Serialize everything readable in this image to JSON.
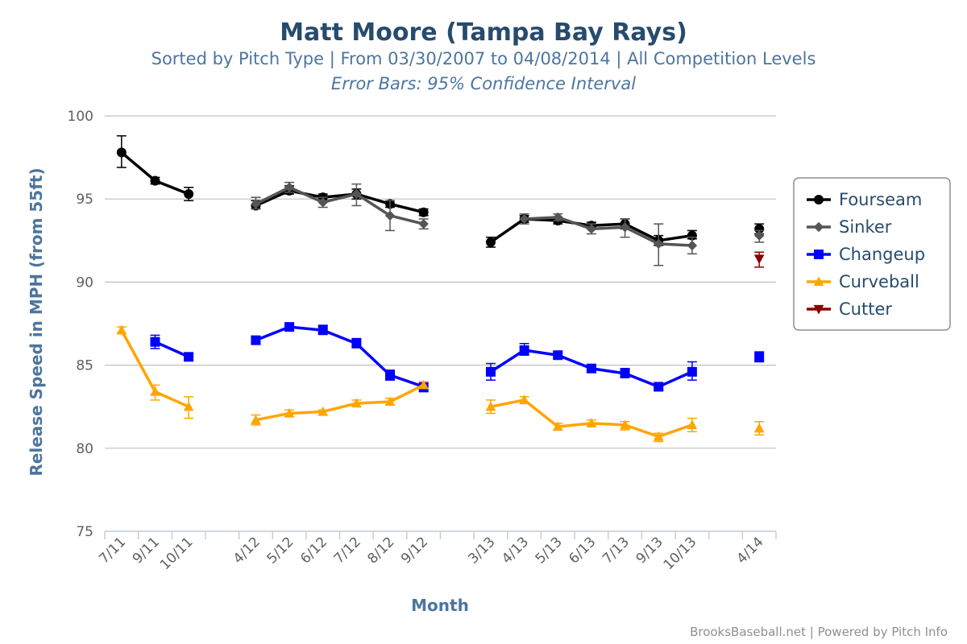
{
  "title": "Matt Moore (Tampa Bay Rays)",
  "subtitle": "Sorted by Pitch Type | From 03/30/2007 to 04/08/2014 | All Competition Levels",
  "subtitle2": "Error Bars: 95% Confidence Interval",
  "credits": "BrooksBaseball.net | Powered by Pitch Info",
  "chart_data": {
    "type": "line",
    "xlabel": "Month",
    "ylabel": "Release Speed in MPH (from 55ft)",
    "ylim": [
      75,
      100
    ],
    "yticks": [
      75,
      80,
      85,
      90,
      95,
      100
    ],
    "grid": true,
    "legend_position": "right",
    "xticks": [
      {
        "label": "7/11",
        "x": 0.5
      },
      {
        "label": "9/11",
        "x": 1.5
      },
      {
        "label": "10/11",
        "x": 2.5
      },
      {
        "label": "4/12",
        "x": 4.5
      },
      {
        "label": "5/12",
        "x": 5.5
      },
      {
        "label": "6/12",
        "x": 6.5
      },
      {
        "label": "7/12",
        "x": 7.5
      },
      {
        "label": "8/12",
        "x": 8.5
      },
      {
        "label": "9/12",
        "x": 9.5
      },
      {
        "label": "3/13",
        "x": 11.5
      },
      {
        "label": "4/13",
        "x": 12.5
      },
      {
        "label": "5/13",
        "x": 13.5
      },
      {
        "label": "6/13",
        "x": 14.5
      },
      {
        "label": "7/13",
        "x": 15.5
      },
      {
        "label": "9/13",
        "x": 16.5
      },
      {
        "label": "10/13",
        "x": 17.5
      },
      {
        "label": "4/14",
        "x": 19.5
      }
    ],
    "series": [
      {
        "name": "Fourseam",
        "color": "#000000",
        "marker": "circle",
        "points": [
          {
            "x": 0.5,
            "y": 97.8,
            "lo": 96.9,
            "hi": 98.8
          },
          {
            "x": 1.5,
            "y": 96.1,
            "lo": 95.9,
            "hi": 96.3
          },
          {
            "x": 2.5,
            "y": 95.3,
            "lo": 94.9,
            "hi": 95.7
          },
          null,
          {
            "x": 4.5,
            "y": 94.6,
            "lo": 94.4,
            "hi": 94.9
          },
          {
            "x": 5.5,
            "y": 95.5,
            "lo": 95.3,
            "hi": 95.8
          },
          {
            "x": 6.5,
            "y": 95.1,
            "lo": 94.9,
            "hi": 95.3
          },
          {
            "x": 7.5,
            "y": 95.3,
            "lo": 95.0,
            "hi": 95.6
          },
          {
            "x": 8.5,
            "y": 94.7,
            "lo": 94.5,
            "hi": 94.9
          },
          {
            "x": 9.5,
            "y": 94.2,
            "lo": 94.0,
            "hi": 94.4
          },
          null,
          {
            "x": 11.5,
            "y": 92.4,
            "lo": 92.1,
            "hi": 92.7
          },
          {
            "x": 12.5,
            "y": 93.8,
            "lo": 93.6,
            "hi": 94.0
          },
          {
            "x": 13.5,
            "y": 93.7,
            "lo": 93.5,
            "hi": 93.9
          },
          {
            "x": 14.5,
            "y": 93.4,
            "lo": 93.2,
            "hi": 93.6
          },
          {
            "x": 15.5,
            "y": 93.5,
            "lo": 93.2,
            "hi": 93.8
          },
          {
            "x": 16.5,
            "y": 92.5,
            "lo": 92.2,
            "hi": 92.8
          },
          {
            "x": 17.5,
            "y": 92.8,
            "lo": 92.6,
            "hi": 93.1
          },
          null,
          {
            "x": 19.5,
            "y": 93.2,
            "lo": 92.9,
            "hi": 93.5
          }
        ]
      },
      {
        "name": "Sinker",
        "color": "#555555",
        "marker": "diamond",
        "points": [
          {
            "x": 4.5,
            "y": 94.7,
            "lo": 94.4,
            "hi": 95.1
          },
          {
            "x": 5.5,
            "y": 95.7,
            "lo": 95.4,
            "hi": 96.0
          },
          {
            "x": 6.5,
            "y": 94.8,
            "lo": 94.5,
            "hi": 95.1
          },
          {
            "x": 7.5,
            "y": 95.3,
            "lo": 94.6,
            "hi": 95.9
          },
          {
            "x": 8.5,
            "y": 94.0,
            "lo": 93.1,
            "hi": 94.9
          },
          {
            "x": 9.5,
            "y": 93.5,
            "lo": 93.2,
            "hi": 93.8
          },
          null,
          {
            "x": 12.5,
            "y": 93.8,
            "lo": 93.5,
            "hi": 94.1
          },
          {
            "x": 13.5,
            "y": 93.9,
            "lo": 93.7,
            "hi": 94.1
          },
          {
            "x": 14.5,
            "y": 93.2,
            "lo": 92.9,
            "hi": 93.5
          },
          {
            "x": 15.5,
            "y": 93.3,
            "lo": 92.7,
            "hi": 93.8
          },
          {
            "x": 16.5,
            "y": 92.3,
            "lo": 91.0,
            "hi": 93.5
          },
          {
            "x": 17.5,
            "y": 92.2,
            "lo": 91.7,
            "hi": 92.7
          },
          null,
          {
            "x": 19.5,
            "y": 92.8,
            "lo": 92.4,
            "hi": 93.1
          }
        ]
      },
      {
        "name": "Changeup",
        "color": "#0000ff",
        "marker": "square",
        "points": [
          {
            "x": 1.5,
            "y": 86.4,
            "lo": 86.0,
            "hi": 86.8
          },
          {
            "x": 2.5,
            "y": 85.5,
            "lo": 85.3,
            "hi": 85.7
          },
          null,
          {
            "x": 4.5,
            "y": 86.5,
            "lo": 86.3,
            "hi": 86.7
          },
          {
            "x": 5.5,
            "y": 87.3,
            "lo": 87.1,
            "hi": 87.5
          },
          {
            "x": 6.5,
            "y": 87.1,
            "lo": 86.9,
            "hi": 87.4
          },
          {
            "x": 7.5,
            "y": 86.3,
            "lo": 86.1,
            "hi": 86.6
          },
          {
            "x": 8.5,
            "y": 84.4,
            "lo": 84.1,
            "hi": 84.7
          },
          {
            "x": 9.5,
            "y": 83.7,
            "lo": 83.4,
            "hi": 84.0
          },
          null,
          {
            "x": 11.5,
            "y": 84.6,
            "lo": 84.1,
            "hi": 85.1
          },
          {
            "x": 12.5,
            "y": 85.9,
            "lo": 85.6,
            "hi": 86.3
          },
          {
            "x": 13.5,
            "y": 85.6,
            "lo": 85.4,
            "hi": 85.8
          },
          {
            "x": 14.5,
            "y": 84.8,
            "lo": 84.6,
            "hi": 85.0
          },
          {
            "x": 15.5,
            "y": 84.5,
            "lo": 84.3,
            "hi": 84.8
          },
          {
            "x": 16.5,
            "y": 83.7,
            "lo": 83.5,
            "hi": 83.9
          },
          {
            "x": 17.5,
            "y": 84.6,
            "lo": 84.1,
            "hi": 85.2
          },
          null,
          {
            "x": 19.5,
            "y": 85.5,
            "lo": 85.2,
            "hi": 85.8
          }
        ]
      },
      {
        "name": "Curveball",
        "color": "#ffa500",
        "marker": "triangle",
        "points": [
          {
            "x": 0.5,
            "y": 87.1,
            "lo": 86.9,
            "hi": 87.3
          },
          {
            "x": 1.5,
            "y": 83.4,
            "lo": 82.9,
            "hi": 83.8
          },
          {
            "x": 2.5,
            "y": 82.5,
            "lo": 81.8,
            "hi": 83.1
          },
          null,
          {
            "x": 4.5,
            "y": 81.7,
            "lo": 81.4,
            "hi": 82.0
          },
          {
            "x": 5.5,
            "y": 82.1,
            "lo": 81.9,
            "hi": 82.3
          },
          {
            "x": 6.5,
            "y": 82.2,
            "lo": 82.0,
            "hi": 82.3
          },
          {
            "x": 7.5,
            "y": 82.7,
            "lo": 82.5,
            "hi": 82.9
          },
          {
            "x": 8.5,
            "y": 82.8,
            "lo": 82.6,
            "hi": 83.0
          },
          {
            "x": 9.5,
            "y": 83.8,
            "lo": 83.6,
            "hi": 84.0
          },
          null,
          {
            "x": 11.5,
            "y": 82.5,
            "lo": 82.1,
            "hi": 82.9
          },
          {
            "x": 12.5,
            "y": 82.9,
            "lo": 82.7,
            "hi": 83.1
          },
          {
            "x": 13.5,
            "y": 81.3,
            "lo": 81.1,
            "hi": 81.5
          },
          {
            "x": 14.5,
            "y": 81.5,
            "lo": 81.3,
            "hi": 81.7
          },
          {
            "x": 15.5,
            "y": 81.4,
            "lo": 81.1,
            "hi": 81.6
          },
          {
            "x": 16.5,
            "y": 80.7,
            "lo": 80.4,
            "hi": 80.9
          },
          {
            "x": 17.5,
            "y": 81.4,
            "lo": 81.0,
            "hi": 81.8
          },
          null,
          {
            "x": 19.5,
            "y": 81.2,
            "lo": 80.8,
            "hi": 81.6
          }
        ]
      },
      {
        "name": "Cutter",
        "color": "#8b0000",
        "marker": "triangle-down",
        "points": [
          {
            "x": 19.5,
            "y": 91.4,
            "lo": 90.9,
            "hi": 91.8
          }
        ]
      }
    ],
    "xrange": [
      0,
      20
    ]
  }
}
